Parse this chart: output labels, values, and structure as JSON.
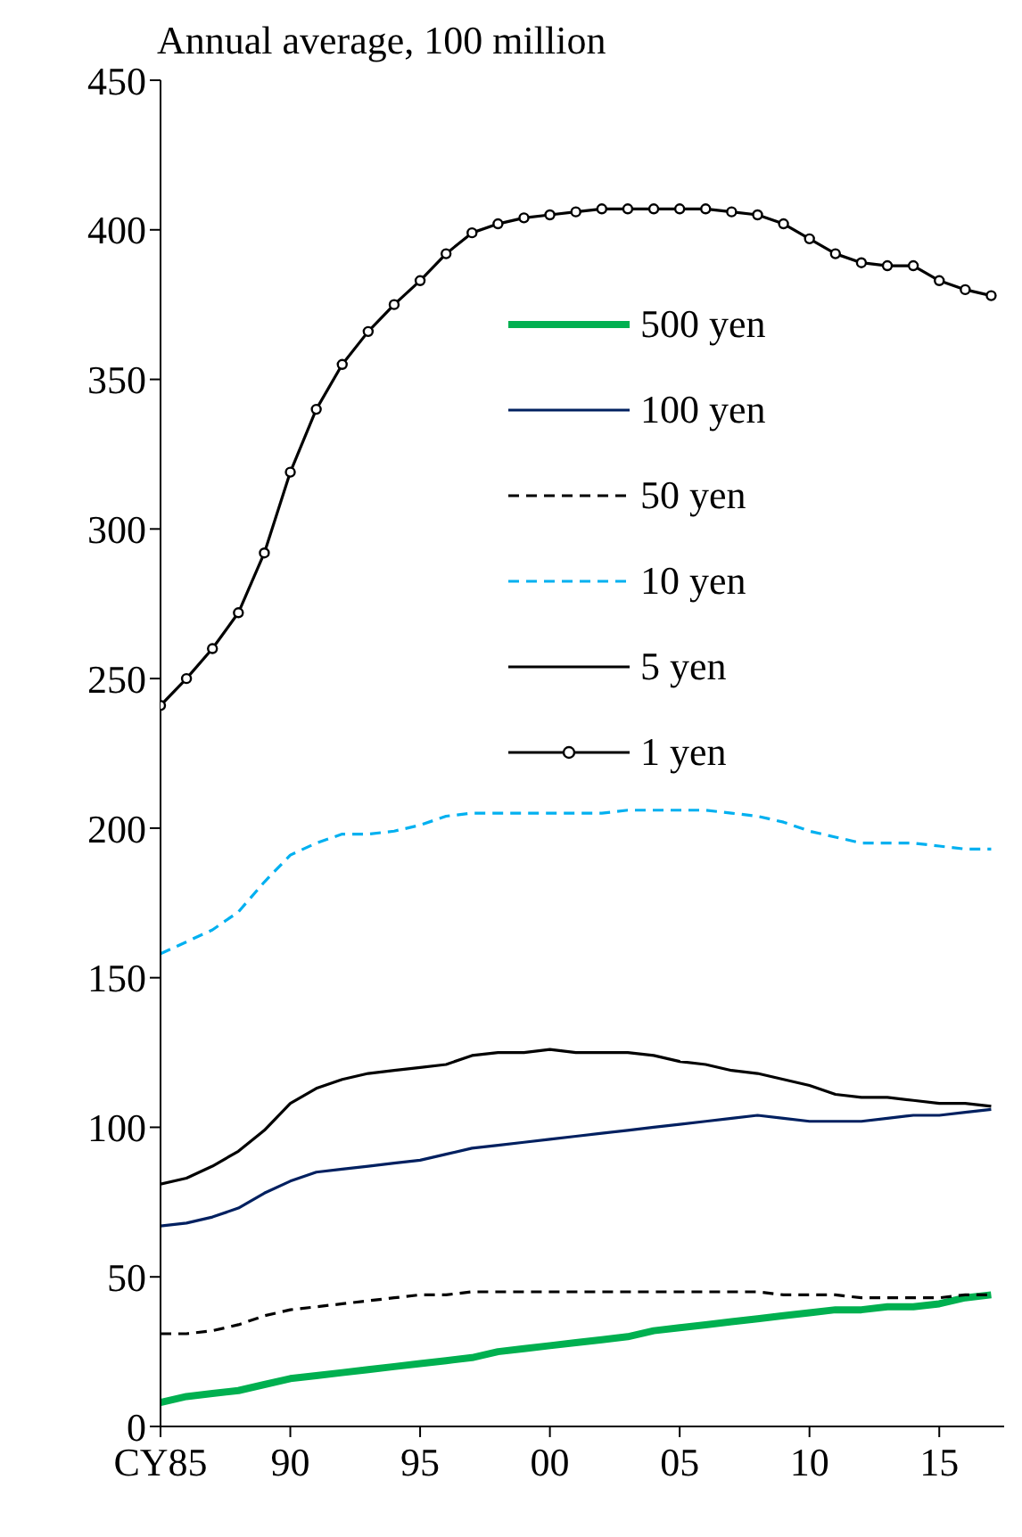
{
  "chart_data": {
    "type": "line",
    "title": "Annual average, 100 million",
    "x": [
      1985,
      1986,
      1987,
      1988,
      1989,
      1990,
      1991,
      1992,
      1993,
      1994,
      1995,
      1996,
      1997,
      1998,
      1999,
      2000,
      2001,
      2002,
      2003,
      2004,
      2005,
      2006,
      2007,
      2008,
      2009,
      2010,
      2011,
      2012,
      2013,
      2014,
      2015,
      2016,
      2017
    ],
    "xlim": [
      1985,
      2017.5
    ],
    "xticks": [
      {
        "value": 1985,
        "label": "CY85"
      },
      {
        "value": 1990,
        "label": "90"
      },
      {
        "value": 1995,
        "label": "95"
      },
      {
        "value": 2000,
        "label": "00"
      },
      {
        "value": 2005,
        "label": "05"
      },
      {
        "value": 2010,
        "label": "10"
      },
      {
        "value": 2015,
        "label": "15"
      }
    ],
    "ylim": [
      0,
      450
    ],
    "yticks": [
      0,
      50,
      100,
      150,
      200,
      250,
      300,
      350,
      400,
      450
    ],
    "grid": false,
    "legend": "right",
    "series": [
      {
        "name": "500 yen",
        "color": "#00b050",
        "line_style": "solid",
        "marker": "none",
        "values": [
          8,
          10,
          11,
          12,
          14,
          16,
          17,
          18,
          19,
          20,
          21,
          22,
          23,
          25,
          26,
          27,
          28,
          29,
          30,
          32,
          33,
          34,
          35,
          36,
          37,
          38,
          39,
          39,
          40,
          40,
          41,
          43,
          44
        ]
      },
      {
        "name": "100 yen",
        "color": "#002060",
        "line_style": "solid",
        "marker": "none",
        "values": [
          67,
          68,
          70,
          73,
          78,
          82,
          85,
          86,
          87,
          88,
          89,
          91,
          93,
          94,
          95,
          96,
          97,
          98,
          99,
          100,
          101,
          102,
          103,
          104,
          103,
          102,
          102,
          102,
          103,
          104,
          104,
          105,
          106
        ]
      },
      {
        "name": "50 yen",
        "color": "#000000",
        "line_style": "dashed",
        "marker": "none",
        "values": [
          31,
          31,
          32,
          34,
          37,
          39,
          40,
          41,
          42,
          43,
          44,
          44,
          45,
          45,
          45,
          45,
          45,
          45,
          45,
          45,
          45,
          45,
          45,
          45,
          44,
          44,
          44,
          43,
          43,
          43,
          43,
          44,
          44
        ]
      },
      {
        "name": "10 yen",
        "color": "#00b0f0",
        "line_style": "dashed",
        "marker": "none",
        "values": [
          158,
          162,
          166,
          172,
          182,
          191,
          195,
          198,
          198,
          199,
          201,
          204,
          205,
          205,
          205,
          205,
          205,
          205,
          206,
          206,
          206,
          206,
          205,
          204,
          202,
          199,
          197,
          195,
          195,
          195,
          194,
          193,
          193
        ]
      },
      {
        "name": "5 yen",
        "color": "#000000",
        "line_style": "solid",
        "marker": "none",
        "values": [
          81,
          83,
          87,
          92,
          99,
          108,
          113,
          116,
          118,
          119,
          120,
          121,
          124,
          125,
          125,
          126,
          125,
          125,
          125,
          124,
          122,
          121,
          119,
          118,
          116,
          114,
          111,
          110,
          110,
          109,
          108,
          108,
          107
        ]
      },
      {
        "name": "1 yen",
        "color": "#000000",
        "line_style": "solid",
        "marker": "circle",
        "values": [
          241,
          250,
          260,
          272,
          292,
          319,
          340,
          355,
          366,
          375,
          383,
          392,
          399,
          402,
          404,
          405,
          406,
          407,
          407,
          407,
          407,
          407,
          406,
          405,
          402,
          397,
          392,
          389,
          388,
          388,
          383,
          380,
          378
        ]
      }
    ]
  }
}
